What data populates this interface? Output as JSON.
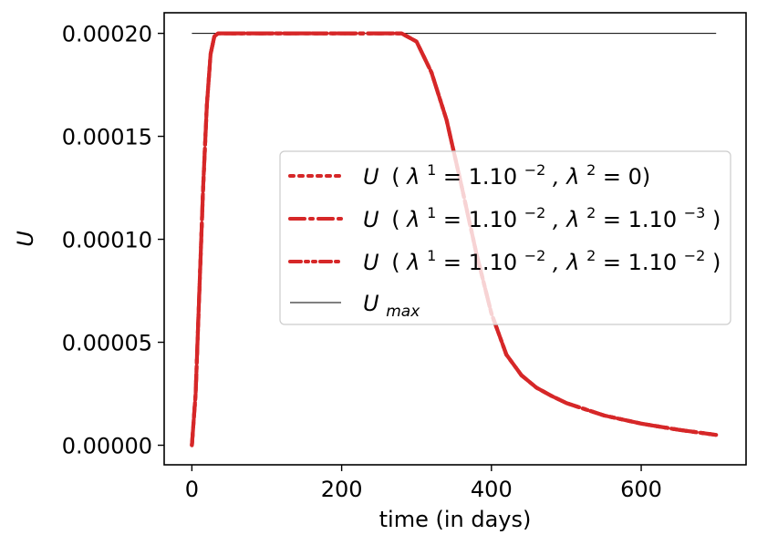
{
  "chart_data": {
    "type": "line",
    "xlabel": "time (in days)",
    "ylabel": "U",
    "xlim": [
      -37,
      740
    ],
    "ylim": [
      -9.5e-06,
      0.00021
    ],
    "xticks": [
      0,
      200,
      400,
      600
    ],
    "xtick_labels": [
      "0",
      "200",
      "400",
      "600"
    ],
    "yticks": [
      0.0,
      5e-05,
      0.0001,
      0.00015,
      0.0002
    ],
    "ytick_labels": [
      "0.00000",
      "0.00005",
      "0.00010",
      "0.00015",
      "0.00020"
    ],
    "grid": false,
    "legend_placement": "center-right",
    "series": [
      {
        "label_parts": {
          "sym": "U",
          "open": "(",
          "lam1": "λ",
          "sup1": "1",
          "eq1": " = 1.10",
          "exp1": "−2",
          "lam2": ", λ",
          "sup2": "2",
          "eq2": " = 0)",
          "exp2": ""
        },
        "style": "dotted",
        "color": "#d62728",
        "x": [
          0,
          5,
          10,
          15,
          20,
          25,
          30,
          35,
          40,
          50,
          100,
          200,
          280,
          300,
          320,
          340,
          360,
          380,
          400,
          420,
          440,
          460,
          480,
          500,
          550,
          600,
          650,
          700
        ],
        "y": [
          0.0,
          2.5e-05,
          7.5e-05,
          0.000125,
          0.000165,
          0.00019,
          0.0001985,
          0.0002,
          0.0002,
          0.0002,
          0.0002,
          0.0002,
          0.0002,
          0.000196,
          0.000181,
          0.000158,
          0.000126,
          9.3e-05,
          6.4e-05,
          4.4e-05,
          3.4e-05,
          2.8e-05,
          2.4e-05,
          2.05e-05,
          1.45e-05,
          1.05e-05,
          7.5e-06,
          5e-06
        ]
      },
      {
        "label_parts": {
          "sym": "U",
          "open": "(",
          "lam1": "λ",
          "sup1": "1",
          "eq1": " = 1.10",
          "exp1": "−2",
          "lam2": ", λ",
          "sup2": "2",
          "eq2": " = 1.10",
          "exp2": "−3",
          "close": ")"
        },
        "style": "dashdot",
        "color": "#d62728",
        "x": [
          0,
          5,
          10,
          15,
          20,
          25,
          30,
          35,
          40,
          50,
          100,
          200,
          280,
          300,
          320,
          340,
          360,
          380,
          400,
          420,
          440,
          460,
          480,
          500,
          550,
          600,
          650,
          700
        ],
        "y": [
          0.0,
          2.5e-05,
          7.5e-05,
          0.000125,
          0.000165,
          0.00019,
          0.0001985,
          0.0002,
          0.0002,
          0.0002,
          0.0002,
          0.0002,
          0.0002,
          0.000196,
          0.000181,
          0.000158,
          0.000126,
          9.3e-05,
          6.4e-05,
          4.4e-05,
          3.4e-05,
          2.8e-05,
          2.4e-05,
          2.05e-05,
          1.45e-05,
          1.05e-05,
          7.5e-06,
          5e-06
        ]
      },
      {
        "label_parts": {
          "sym": "U",
          "open": "(",
          "lam1": "λ",
          "sup1": "1",
          "eq1": " = 1.10",
          "exp1": "−2",
          "lam2": ", λ",
          "sup2": "2",
          "eq2": " = 1.10",
          "exp2": "−2",
          "close": ")"
        },
        "style": "dashdotdot",
        "color": "#d62728",
        "x": [
          0,
          5,
          10,
          15,
          20,
          25,
          30,
          35,
          40,
          50,
          100,
          200,
          280,
          300,
          320,
          340,
          360,
          380,
          400,
          420,
          440,
          460,
          480,
          500,
          550,
          600,
          650,
          700
        ],
        "y": [
          0.0,
          2.5e-05,
          7.5e-05,
          0.000125,
          0.000165,
          0.00019,
          0.0001985,
          0.0002,
          0.0002,
          0.0002,
          0.0002,
          0.0002,
          0.0002,
          0.000196,
          0.000181,
          0.000158,
          0.000126,
          9.3e-05,
          6.4e-05,
          4.4e-05,
          3.4e-05,
          2.8e-05,
          2.4e-05,
          2.05e-05,
          1.45e-05,
          1.05e-05,
          7.5e-06,
          5e-06
        ]
      },
      {
        "label_parts": {
          "sym": "U",
          "sub": "max"
        },
        "style": "solid-thin",
        "color": "#000000",
        "x": [
          0,
          700
        ],
        "y": [
          0.0002,
          0.0002
        ]
      }
    ]
  }
}
